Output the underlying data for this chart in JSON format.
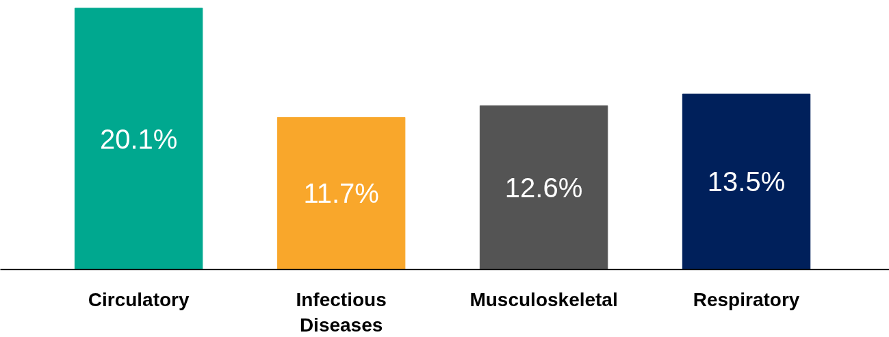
{
  "chart_data": {
    "type": "bar",
    "categories": [
      "Circulatory",
      "Infectious Diseases",
      "Musculoskeletal",
      "Respiratory"
    ],
    "values": [
      20.1,
      11.7,
      12.6,
      13.5
    ],
    "value_labels": [
      "20.1%",
      "11.7%",
      "12.6%",
      "13.5%"
    ],
    "colors": [
      "#00a88f",
      "#f9a72b",
      "#545454",
      "#00205b"
    ],
    "grid": false
  }
}
